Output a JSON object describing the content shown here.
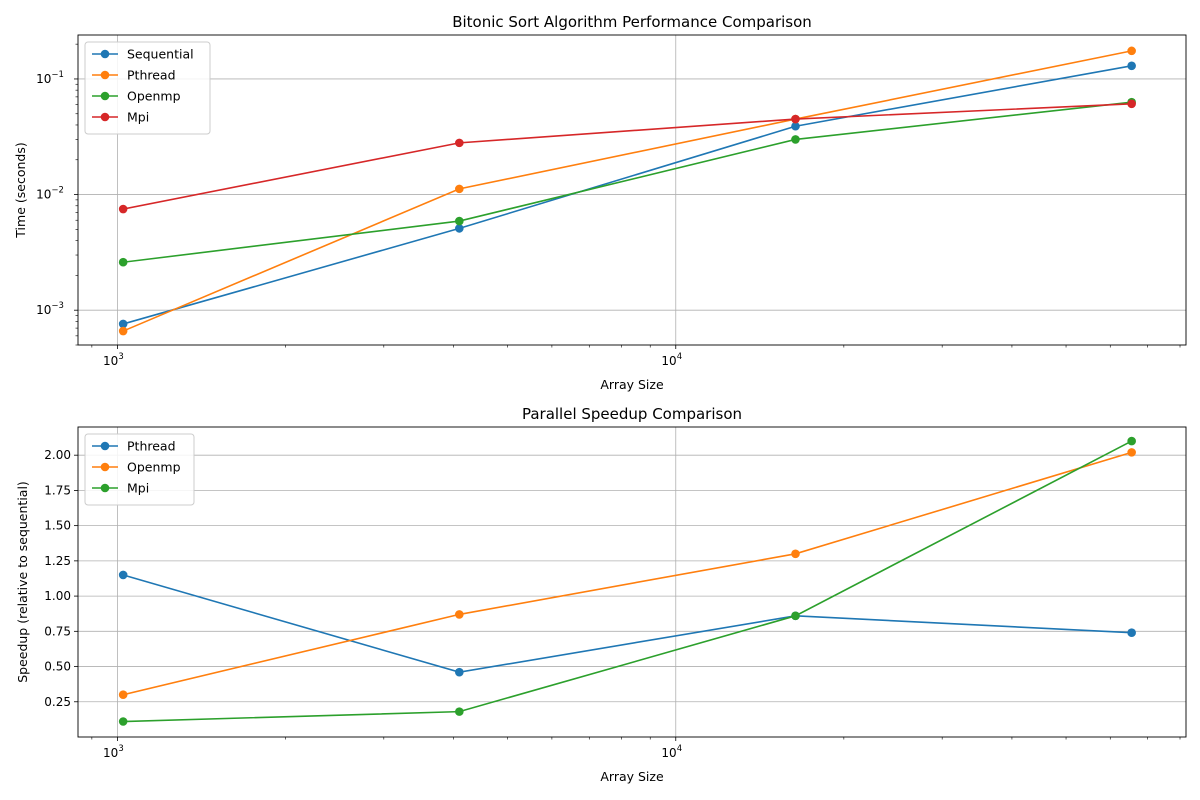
{
  "chart_data": [
    {
      "type": "line",
      "title": "Bitonic Sort Algorithm Performance Comparison",
      "xlabel": "Array Size",
      "ylabel": "Time (seconds)",
      "xscale": "log",
      "yscale": "log",
      "xlim": [
        850,
        82000
      ],
      "ylim": [
        0.0005,
        0.24
      ],
      "grid": "major",
      "legend": "top-left",
      "x": [
        1024,
        4096,
        16384,
        65536
      ],
      "xticks": [
        {
          "value": 1000,
          "base": "10",
          "exp": "3"
        },
        {
          "value": 10000,
          "base": "10",
          "exp": "4"
        }
      ],
      "yticks": [
        {
          "value": 0.001,
          "base": "10",
          "exp": "−3"
        },
        {
          "value": 0.01,
          "base": "10",
          "exp": "−2"
        },
        {
          "value": 0.1,
          "base": "10",
          "exp": "−1"
        }
      ],
      "series": [
        {
          "name": "Sequential",
          "color": "#1f77b4",
          "values": [
            0.00076,
            0.0051,
            0.039,
            0.13
          ]
        },
        {
          "name": "Pthread",
          "color": "#ff7f0e",
          "values": [
            0.00066,
            0.0112,
            0.045,
            0.175
          ]
        },
        {
          "name": "Openmp",
          "color": "#2ca02c",
          "values": [
            0.0026,
            0.0059,
            0.03,
            0.063
          ]
        },
        {
          "name": "Mpi",
          "color": "#d62728",
          "values": [
            0.0075,
            0.028,
            0.045,
            0.061
          ]
        }
      ]
    },
    {
      "type": "line",
      "title": "Parallel Speedup Comparison",
      "xlabel": "Array Size",
      "ylabel": "Speedup (relative to sequential)",
      "xscale": "log",
      "yscale": "linear",
      "xlim": [
        850,
        82000
      ],
      "ylim": [
        0.0,
        2.2
      ],
      "grid": "major",
      "legend": "top-left",
      "x": [
        1024,
        4096,
        16384,
        65536
      ],
      "xticks": [
        {
          "value": 1000,
          "base": "10",
          "exp": "3"
        },
        {
          "value": 10000,
          "base": "10",
          "exp": "4"
        }
      ],
      "yticks": [
        {
          "value": 0.25,
          "label": "0.25"
        },
        {
          "value": 0.5,
          "label": "0.50"
        },
        {
          "value": 0.75,
          "label": "0.75"
        },
        {
          "value": 1.0,
          "label": "1.00"
        },
        {
          "value": 1.25,
          "label": "1.25"
        },
        {
          "value": 1.5,
          "label": "1.50"
        },
        {
          "value": 1.75,
          "label": "1.75"
        },
        {
          "value": 2.0,
          "label": "2.00"
        }
      ],
      "series": [
        {
          "name": "Pthread",
          "color": "#1f77b4",
          "values": [
            1.15,
            0.46,
            0.86,
            0.74
          ]
        },
        {
          "name": "Openmp",
          "color": "#ff7f0e",
          "values": [
            0.3,
            0.87,
            1.3,
            2.02
          ]
        },
        {
          "name": "Mpi",
          "color": "#2ca02c",
          "values": [
            0.11,
            0.18,
            0.86,
            2.1
          ]
        }
      ]
    }
  ]
}
